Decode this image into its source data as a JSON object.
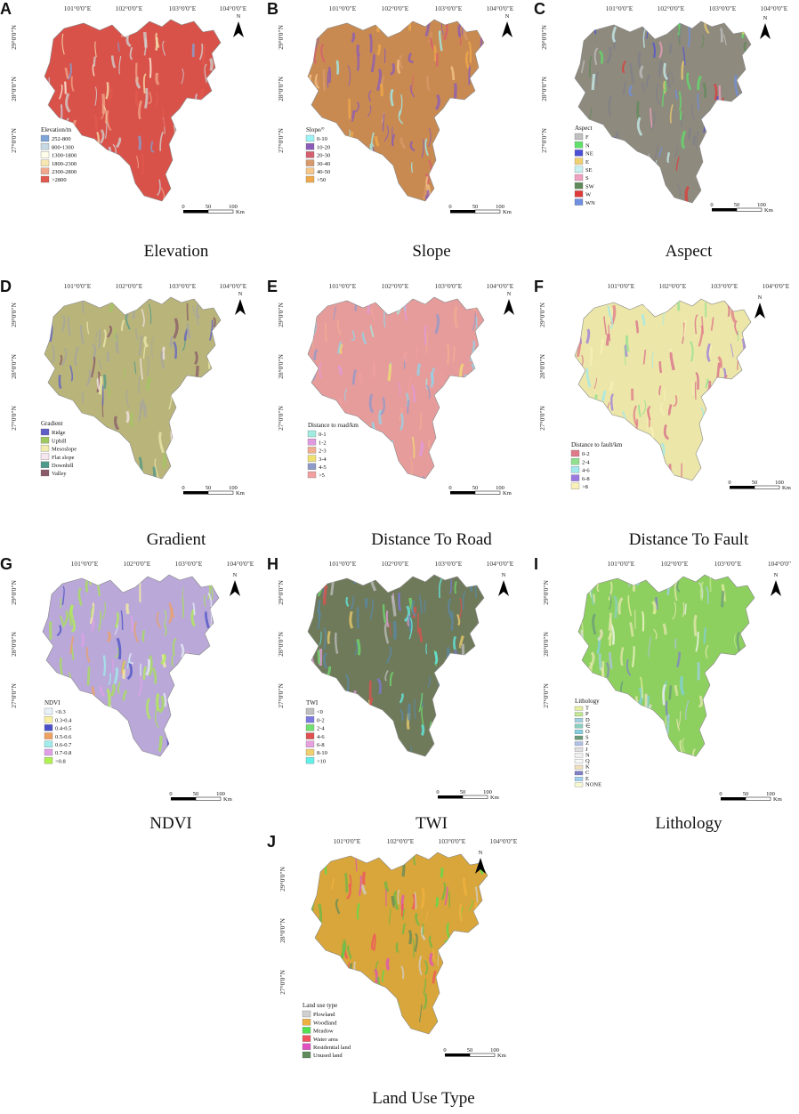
{
  "panels": [
    {
      "letter": "A",
      "caption": "Elevation",
      "base_color": "#d9524a",
      "accent_color": "#cfd8d6",
      "legend_title": "Elevation/m",
      "legend": [
        [
          "252-800",
          "#7da5d8"
        ],
        [
          "800-1300",
          "#c5d8e3"
        ],
        [
          "1300-1800",
          "#fdfde9"
        ],
        [
          "1800-2300",
          "#f6e6b0"
        ],
        [
          "2300-2800",
          "#f0a98c"
        ],
        [
          ">2800",
          "#e25a4d"
        ]
      ]
    },
    {
      "letter": "B",
      "caption": "Slope",
      "base_color": "#c98a52",
      "accent_color": "#8a5bb8",
      "legend_title": "Slope/°",
      "legend": [
        [
          "0-10",
          "#9cf3f5"
        ],
        [
          "10-20",
          "#8a5bb8"
        ],
        [
          "20-30",
          "#d4606d"
        ],
        [
          "30-40",
          "#d89a6b"
        ],
        [
          "40-50",
          "#f5c78a"
        ],
        [
          ">50",
          "#f0a94a"
        ]
      ]
    },
    {
      "letter": "C",
      "caption": "Aspect",
      "base_color": "#8f8a7e",
      "accent_color": "#7f7f8a",
      "legend_title": "Aspect",
      "legend": [
        [
          "F",
          "#c0c0c0"
        ],
        [
          "N",
          "#5fe06a"
        ],
        [
          "NE",
          "#4b4fd8"
        ],
        [
          "E",
          "#f0d070"
        ],
        [
          "SE",
          "#c8f0f0"
        ],
        [
          "S",
          "#f0a0c0"
        ],
        [
          "SW",
          "#5f8a5a"
        ],
        [
          "W",
          "#e03a3a"
        ],
        [
          "WN",
          "#6f8fe0"
        ]
      ]
    },
    {
      "letter": "D",
      "caption": "Gradient",
      "base_color": "#b9b57a",
      "accent_color": "#a7a6a0",
      "legend_title": "Gradient",
      "legend": [
        [
          "Ridge",
          "#6060c8"
        ],
        [
          "Uphill",
          "#a0c860"
        ],
        [
          "Mesoslope",
          "#f0ecb0"
        ],
        [
          "Flat slope",
          "#f6e6ee"
        ],
        [
          "Downhill",
          "#4f9a8a"
        ],
        [
          "Valley",
          "#8a5a6a"
        ]
      ]
    },
    {
      "letter": "E",
      "caption": "Distance To Road",
      "base_color": "#e79c9c",
      "accent_color": "#8fd6e8",
      "legend_title": "Distance to road/km",
      "legend": [
        [
          "0-1",
          "#a0ece0"
        ],
        [
          "1-2",
          "#e09ae0"
        ],
        [
          "2-3",
          "#f0b090"
        ],
        [
          "3-4",
          "#f0e070"
        ],
        [
          "4-5",
          "#8f9ac8"
        ],
        [
          ">5",
          "#f0a0a0"
        ]
      ]
    },
    {
      "letter": "F",
      "caption": "Distance To Fault",
      "base_color": "#ece7a8",
      "accent_color": "#d86a8a",
      "legend_title": "Distance to fault/km",
      "legend": [
        [
          "0-2",
          "#e07a8a"
        ],
        [
          "2-4",
          "#90e090"
        ],
        [
          "4-6",
          "#a0e8ec"
        ],
        [
          "6-8",
          "#9a7ae0"
        ],
        [
          ">8",
          "#f8f0b8"
        ]
      ]
    },
    {
      "letter": "G",
      "caption": "NDVI",
      "base_color": "#b9a8d8",
      "accent_color": "#a8e05a",
      "legend_title": "NDVI",
      "legend": [
        [
          "<0.3",
          "#e8f0f8"
        ],
        [
          "0.3-0.4",
          "#f8f0a0"
        ],
        [
          "0.4-0.5",
          "#4a50c8"
        ],
        [
          "0.5-0.6",
          "#f0a060"
        ],
        [
          "0.6-0.7",
          "#a0ecec"
        ],
        [
          "0.7-0.8",
          "#e0a0e8"
        ],
        [
          ">0.8",
          "#b0f050"
        ]
      ]
    },
    {
      "letter": "H",
      "caption": "TWI",
      "base_color": "#6f7a5a",
      "accent_color": "#5a8aa8",
      "legend_title": "TWI",
      "legend": [
        [
          "<0",
          "#c0c0c0"
        ],
        [
          "0-2",
          "#7a7ae0"
        ],
        [
          "2-4",
          "#70e070"
        ],
        [
          "4-6",
          "#e05050"
        ],
        [
          "6-8",
          "#e8a0e0"
        ],
        [
          "8-10",
          "#f0d070"
        ],
        [
          ">10",
          "#60f0e8"
        ]
      ]
    },
    {
      "letter": "I",
      "caption": "Lithology",
      "base_color": "#8ed060",
      "accent_color": "#e8e8b0",
      "legend_title": "Lithology",
      "legend": [
        [
          "T",
          "#e8f0a0"
        ],
        [
          "P",
          "#c0e890"
        ],
        [
          "D",
          "#a0d0e0"
        ],
        [
          "∈",
          "#8ad0c0"
        ],
        [
          "O",
          "#80d0e0"
        ],
        [
          "S",
          "#6a9a7a"
        ],
        [
          "Z",
          "#b0c0e8"
        ],
        [
          "J",
          "#e0e0e0"
        ],
        [
          "N",
          "#f0f0f0"
        ],
        [
          "Q",
          "#f8f8f8"
        ],
        [
          "K",
          "#f0e0c0"
        ],
        [
          "C",
          "#8080c8"
        ],
        [
          "E",
          "#a0d0f0"
        ],
        [
          "NONE",
          "#f8f8d0"
        ]
      ]
    },
    {
      "letter": "J",
      "caption": "Land Use Type",
      "base_color": "#d8a63a",
      "accent_color": "#6ab84a",
      "legend_title": "Land use type",
      "legend": [
        [
          "Plowland",
          "#d0d0d0"
        ],
        [
          "Woodland",
          "#f0b040"
        ],
        [
          "Meadow",
          "#50e050"
        ],
        [
          "Water area",
          "#f05060"
        ],
        [
          "Residential land",
          "#e050c0"
        ],
        [
          "Unused land",
          "#5f8a5a"
        ]
      ]
    }
  ],
  "longitudes": [
    "101°0'0\"E",
    "102°0'0\"E",
    "103°0'0\"E",
    "104°0'0\"E"
  ],
  "longitudes_I": [
    "101°0'0\"E",
    "102°0'0\"E",
    "103°0'0\"E",
    "104°0'0\""
  ],
  "latitudes": [
    "29°0'0\"N",
    "28°0'0\"N",
    "27°0'0\"N"
  ],
  "north_label": "N",
  "scale": {
    "labels": [
      "0",
      "50",
      "100"
    ],
    "unit": "Km"
  }
}
